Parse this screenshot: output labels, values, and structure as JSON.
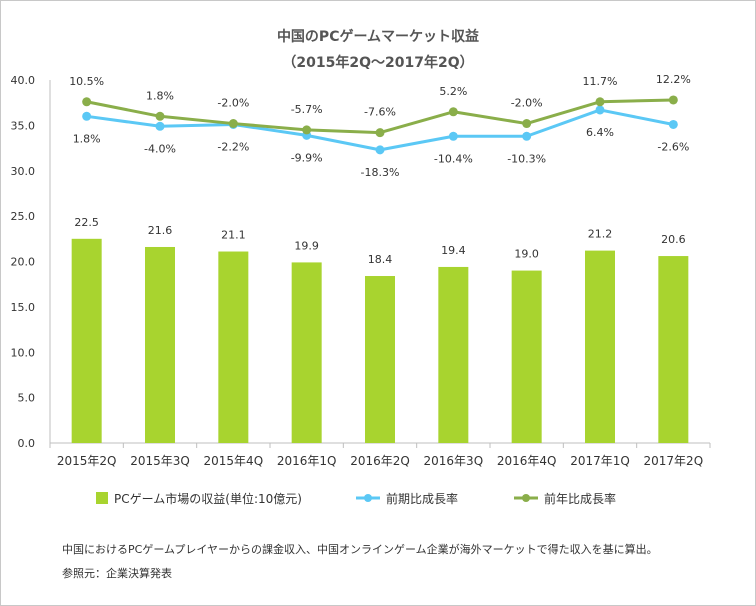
{
  "chart_data": {
    "type": "bar",
    "title": "中国のPCゲームマーケット収益",
    "subtitle": "（2015年2Q～2017年2Q）",
    "categories": [
      "2015年2Q",
      "2015年3Q",
      "2015年4Q",
      "2016年1Q",
      "2016年2Q",
      "2016年3Q",
      "2016年4Q",
      "2017年1Q",
      "2017年2Q"
    ],
    "ylim": [
      0,
      40
    ],
    "yticks": [
      "0.0",
      "5.0",
      "10.0",
      "15.0",
      "20.0",
      "25.0",
      "30.0",
      "35.0",
      "40.0"
    ],
    "grid": false,
    "legend_placement": "bottom",
    "series": [
      {
        "name": "PCゲーム市場の収益(単位:10億元)",
        "kind": "bar",
        "color": "#a8d42f",
        "values": [
          22.5,
          21.6,
          21.1,
          19.9,
          18.4,
          19.4,
          19.0,
          21.2,
          20.6
        ],
        "labels": [
          "22.5",
          "21.6",
          "21.1",
          "19.9",
          "18.4",
          "19.4",
          "19.0",
          "21.2",
          "20.6"
        ]
      },
      {
        "name": "前期比成長率",
        "kind": "line",
        "color": "#5bc8f5",
        "values": [
          36.0,
          34.9,
          35.1,
          33.9,
          32.3,
          33.8,
          33.8,
          36.7,
          35.1
        ],
        "labels": [
          "1.8%",
          "-4.0%",
          "-2.2%",
          "-9.9%",
          "-18.3%",
          "-10.4%",
          "-10.3%",
          "6.4%",
          "-2.6%"
        ]
      },
      {
        "name": "前年比成長率",
        "kind": "line",
        "color": "#8aae4a",
        "values": [
          37.6,
          36.0,
          35.2,
          34.5,
          34.2,
          36.5,
          35.2,
          37.6,
          37.8
        ],
        "labels": [
          "10.5%",
          "1.8%",
          "-2.0%",
          "-5.7%",
          "-7.6%",
          "5.2%",
          "-2.0%",
          "11.7%",
          "12.2%"
        ]
      }
    ]
  },
  "legend": [
    {
      "label": "PCゲーム市場の収益(単位:10億元)",
      "marker": "bar",
      "color": "#a8d42f"
    },
    {
      "label": "前期比成長率",
      "marker": "line",
      "color": "#5bc8f5"
    },
    {
      "label": "前年比成長率",
      "marker": "line",
      "color": "#8aae4a"
    }
  ],
  "notes": {
    "description": "中国におけるPCゲームプレイヤーからの課金収入、中国オンラインゲーム企業が海外マーケットで得た収入を基に算出。",
    "source": "参照元：企業決算発表"
  }
}
